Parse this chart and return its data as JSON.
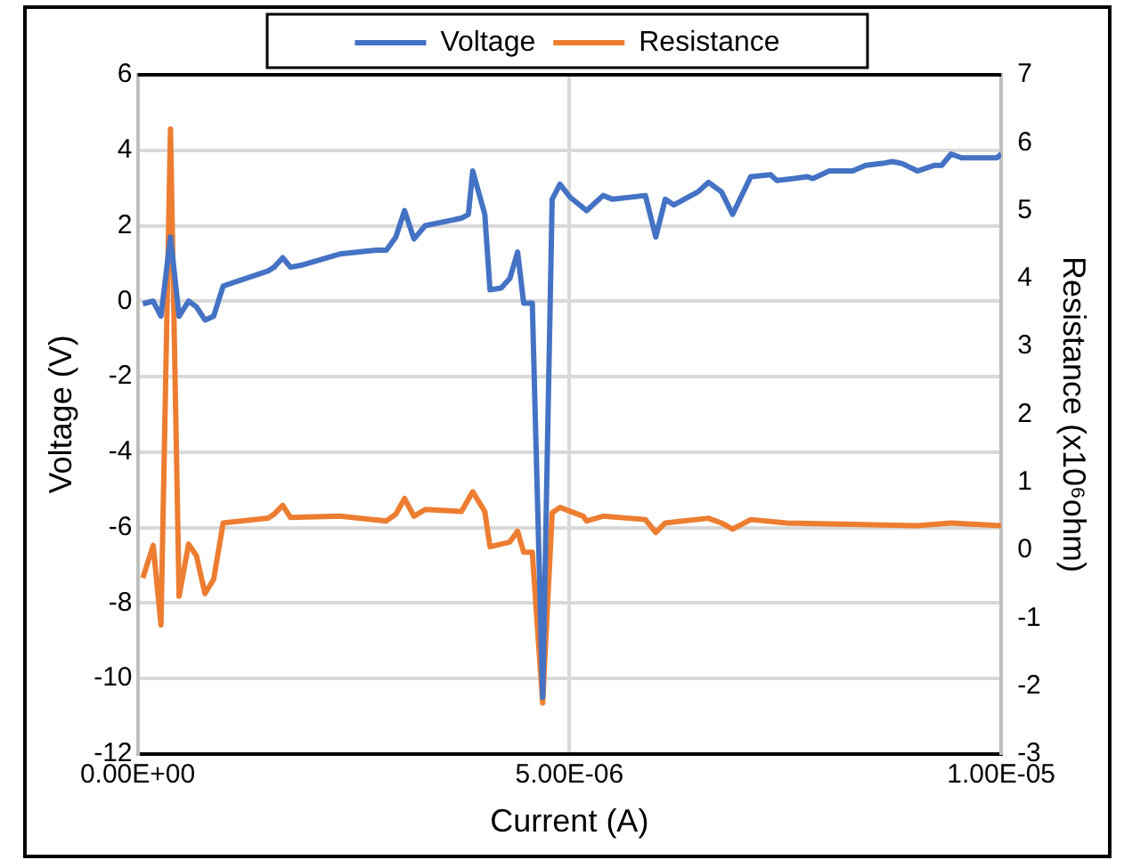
{
  "chart_data": {
    "type": "line",
    "xlabel": "Current (A)",
    "ylabel": "Voltage (V)",
    "y2label": "Resistance (x10⁶ohm)",
    "xlim": [
      0,
      1e-05
    ],
    "xticks": [
      {
        "value": 0,
        "label": "0.00E+00"
      },
      {
        "value": 5e-06,
        "label": "5.00E-06"
      },
      {
        "value": 1e-05,
        "label": "1.00E-05"
      }
    ],
    "ylim": [
      -12,
      6
    ],
    "yticks": [
      -12,
      -10,
      -8,
      -6,
      -4,
      -2,
      0,
      2,
      4,
      6
    ],
    "y2lim": [
      -3,
      7
    ],
    "y2ticks": [
      -3,
      -2,
      -1,
      0,
      1,
      2,
      3,
      4,
      5,
      6,
      7
    ],
    "grid": true,
    "legend": "top",
    "marker": "none",
    "line_style": "solid",
    "series": [
      {
        "name": "Voltage",
        "color": "#4472c4",
        "x": [
          6e-08,
          1.8e-07,
          2.7e-07,
          3.8e-07,
          4.8e-07,
          5.9e-07,
          6.8e-07,
          7.8e-07,
          8.8e-07,
          9.9e-07,
          1.51e-06,
          1.58e-06,
          1.68e-06,
          1.77e-06,
          1.89e-06,
          2.34e-06,
          2.76e-06,
          2.88e-06,
          2.99e-06,
          3.09e-06,
          3.2e-06,
          3.33e-06,
          3.75e-06,
          3.83e-06,
          3.88e-06,
          4.02e-06,
          4.08e-06,
          4.21e-06,
          4.31e-06,
          4.4e-06,
          4.47e-06,
          4.57e-06,
          4.69e-06,
          4.8e-06,
          4.89e-06,
          5.01e-06,
          5.2e-06,
          5.39e-06,
          5.5e-06,
          5.88e-06,
          6e-06,
          6.11e-06,
          6.21e-06,
          6.49e-06,
          6.61e-06,
          6.76e-06,
          6.89e-06,
          7.1e-06,
          7.33e-06,
          7.4e-06,
          7.6e-06,
          7.75e-06,
          7.82e-06,
          8.01e-06,
          8.28e-06,
          8.43e-06,
          8.62e-06,
          8.74e-06,
          8.85e-06,
          9.03e-06,
          9.23e-06,
          9.31e-06,
          9.42e-06,
          9.54e-06,
          9.95e-06,
          1e-05
        ],
        "values": [
          -0.07,
          0,
          -0.4,
          1.7,
          -0.4,
          0,
          -0.15,
          -0.5,
          -0.4,
          0.4,
          0.8,
          0.9,
          1.15,
          0.9,
          0.95,
          1.25,
          1.35,
          1.35,
          1.7,
          2.4,
          1.65,
          2.0,
          2.2,
          2.3,
          3.45,
          2.3,
          0.3,
          0.35,
          0.6,
          1.3,
          -0.05,
          -0.05,
          -10.5,
          2.7,
          3.1,
          2.75,
          2.4,
          2.8,
          2.7,
          2.8,
          1.7,
          2.7,
          2.55,
          2.9,
          3.15,
          2.9,
          2.3,
          3.3,
          3.35,
          3.2,
          3.25,
          3.3,
          3.25,
          3.45,
          3.45,
          3.6,
          3.65,
          3.7,
          3.65,
          3.45,
          3.6,
          3.6,
          3.9,
          3.8,
          3.8,
          3.9
        ]
      },
      {
        "name": "Resistance",
        "color": "#ed7d31",
        "axis": "y2",
        "x": [
          6e-08,
          1.8e-07,
          2.7e-07,
          3.8e-07,
          4.8e-07,
          5.9e-07,
          6.8e-07,
          7.8e-07,
          8.8e-07,
          9.9e-07,
          1.51e-06,
          1.58e-06,
          1.68e-06,
          1.77e-06,
          2.34e-06,
          2.88e-06,
          2.99e-06,
          3.09e-06,
          3.2e-06,
          3.33e-06,
          3.75e-06,
          3.88e-06,
          4.02e-06,
          4.08e-06,
          4.31e-06,
          4.4e-06,
          4.47e-06,
          4.57e-06,
          4.69e-06,
          4.8e-06,
          4.89e-06,
          5.16e-06,
          5.2e-06,
          5.39e-06,
          5.88e-06,
          6e-06,
          6.11e-06,
          6.61e-06,
          6.76e-06,
          6.89e-06,
          7.1e-06,
          7.52e-06,
          9.03e-06,
          9.42e-06,
          1e-05
        ],
        "values": [
          -0.41,
          0.07,
          -1.1,
          6.2,
          -0.68,
          0.09,
          -0.08,
          -0.64,
          -0.43,
          0.4,
          0.47,
          0.53,
          0.66,
          0.48,
          0.5,
          0.43,
          0.53,
          0.76,
          0.5,
          0.6,
          0.57,
          0.86,
          0.57,
          0.05,
          0.12,
          0.28,
          -0.03,
          -0.03,
          -2.25,
          0.55,
          0.63,
          0.5,
          0.43,
          0.5,
          0.45,
          0.26,
          0.4,
          0.47,
          0.4,
          0.31,
          0.45,
          0.4,
          0.36,
          0.4,
          0.36
        ]
      }
    ]
  }
}
